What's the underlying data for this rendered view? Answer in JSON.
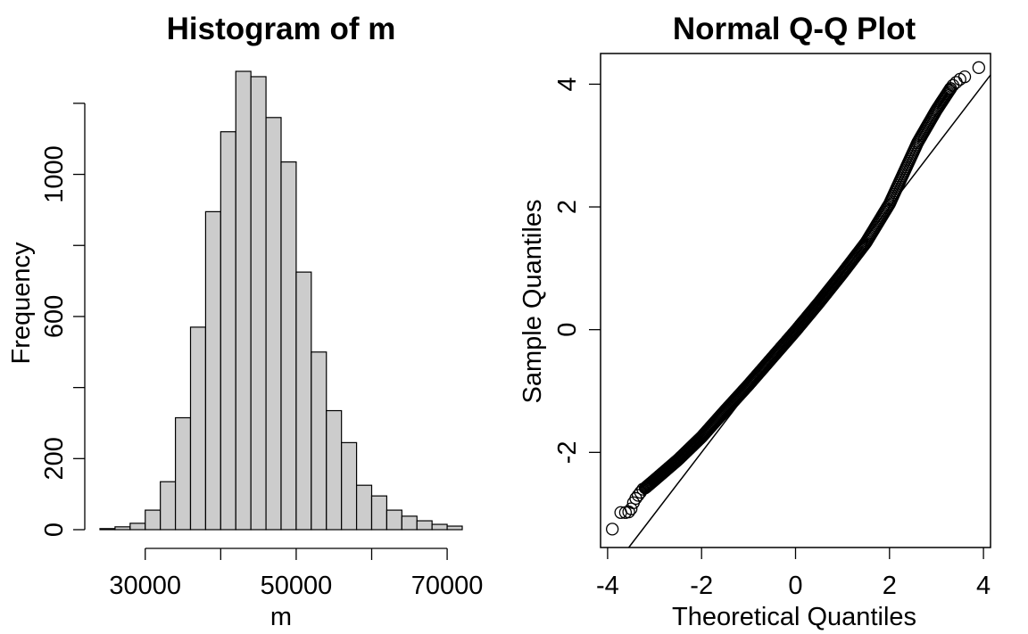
{
  "chart_data": [
    {
      "type": "bar",
      "title": "Histogram of m",
      "xlabel": "m",
      "ylabel": "Frequency",
      "bin_edges": [
        24000,
        26000,
        28000,
        30000,
        32000,
        34000,
        36000,
        38000,
        40000,
        42000,
        44000,
        46000,
        48000,
        50000,
        52000,
        54000,
        56000,
        58000,
        60000,
        62000,
        64000,
        66000,
        68000,
        70000,
        72000
      ],
      "values": [
        3,
        8,
        18,
        55,
        135,
        315,
        570,
        895,
        1120,
        1290,
        1275,
        1160,
        1035,
        725,
        500,
        335,
        245,
        125,
        95,
        55,
        38,
        25,
        15,
        10
      ],
      "xlim": [
        24000,
        72000
      ],
      "ylim": [
        0,
        1290
      ],
      "x_ticks": [
        30000,
        50000,
        70000
      ],
      "x_tick_labels": [
        "30000",
        "50000",
        "70000"
      ],
      "y_ticks": [
        0,
        200,
        600,
        1000
      ],
      "y_tick_labels": [
        "0",
        "200",
        "600",
        "1000"
      ],
      "y_minor_ticks": [
        400,
        800,
        1200
      ]
    },
    {
      "type": "scatter",
      "title": "Normal Q-Q Plot",
      "xlabel": "Theoretical Quantiles",
      "ylabel": "Sample Quantiles",
      "xlim": [
        -4.15,
        4.15
      ],
      "ylim": [
        -3.55,
        4.5
      ],
      "x_ticks": [
        -4,
        -2,
        0,
        2,
        4
      ],
      "x_tick_labels": [
        "-4",
        "-2",
        "0",
        "2",
        "4"
      ],
      "y_ticks": [
        -2,
        0,
        2,
        4
      ],
      "y_tick_labels": [
        "-2",
        "0",
        "2",
        "4"
      ],
      "reference_line": {
        "slope": 1.0,
        "intercept": 0.0
      },
      "n_points": 10000,
      "points": [
        [
          -3.9,
          -3.25
        ],
        [
          -3.72,
          -2.98
        ],
        [
          -3.62,
          -2.98
        ],
        [
          -3.55,
          -2.97
        ],
        [
          -3.5,
          -2.92
        ],
        [
          -3.45,
          -2.82
        ],
        [
          -3.4,
          -2.75
        ],
        [
          -3.35,
          -2.7
        ],
        [
          -3.3,
          -2.65
        ],
        [
          -3.25,
          -2.6
        ],
        [
          3.3,
          3.93
        ],
        [
          3.35,
          3.98
        ],
        [
          3.42,
          4.03
        ],
        [
          3.5,
          4.08
        ],
        [
          3.6,
          4.12
        ],
        [
          3.9,
          4.27
        ]
      ],
      "curve": [
        [
          -3.2,
          -2.58
        ],
        [
          -3.0,
          -2.45
        ],
        [
          -2.5,
          -2.12
        ],
        [
          -2.0,
          -1.75
        ],
        [
          -1.5,
          -1.32
        ],
        [
          -1.0,
          -0.9
        ],
        [
          -0.5,
          -0.46
        ],
        [
          0.0,
          -0.02
        ],
        [
          0.5,
          0.44
        ],
        [
          1.0,
          0.92
        ],
        [
          1.5,
          1.42
        ],
        [
          2.0,
          2.05
        ],
        [
          2.3,
          2.55
        ],
        [
          2.6,
          3.05
        ],
        [
          3.0,
          3.58
        ],
        [
          3.3,
          3.93
        ]
      ]
    }
  ]
}
